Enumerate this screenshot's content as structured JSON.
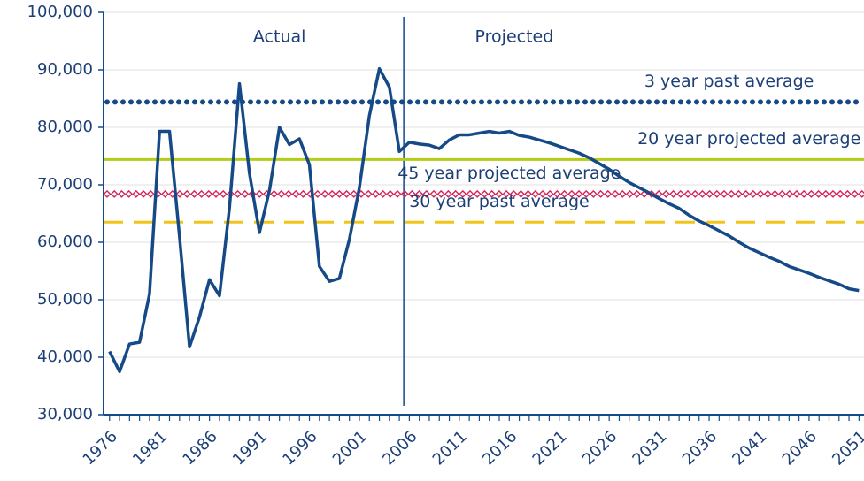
{
  "chart_data": {
    "type": "line",
    "annotations": [
      {
        "text": "Actual",
        "x": 1993
      },
      {
        "text": "Projected",
        "x": 2016.5
      }
    ],
    "divider_x": 2005,
    "x": [
      1976,
      1977,
      1978,
      1979,
      1980,
      1981,
      1982,
      1983,
      1984,
      1985,
      1986,
      1987,
      1988,
      1989,
      1990,
      1991,
      1992,
      1993,
      1994,
      1995,
      1996,
      1997,
      1998,
      1999,
      2000,
      2001,
      2002,
      2003,
      2004,
      2005,
      2006,
      2007,
      2008,
      2009,
      2010,
      2011,
      2012,
      2013,
      2014,
      2015,
      2016,
      2017,
      2018,
      2019,
      2020,
      2021,
      2022,
      2023,
      2024,
      2025,
      2026,
      2027,
      2028,
      2029,
      2030,
      2031,
      2032,
      2033,
      2034,
      2035,
      2036,
      2037,
      2038,
      2039,
      2040,
      2041,
      2042,
      2043,
      2044,
      2045,
      2046,
      2047,
      2048,
      2049,
      2050,
      2051
    ],
    "series": [
      {
        "color": "#154a87",
        "values": [
          41000,
          37500,
          42300,
          42600,
          51000,
          79300,
          79300,
          61000,
          41800,
          47000,
          53500,
          50700,
          66000,
          87600,
          72000,
          61700,
          69000,
          80000,
          77000,
          78000,
          73500,
          55800,
          53200,
          53700,
          60500,
          69500,
          82000,
          90200,
          87000,
          75800,
          77400,
          77100,
          76900,
          76300,
          77800,
          78700,
          78700,
          79000,
          79300,
          79000,
          79300,
          78600,
          78300,
          77800,
          77300,
          76700,
          76100,
          75500,
          74700,
          73700,
          72700,
          71500,
          70400,
          69500,
          68600,
          67600,
          66700,
          65900,
          64700,
          63700,
          62900,
          62000,
          61100,
          60000,
          59000,
          58200,
          57400,
          56700,
          55800,
          55200,
          54600,
          53900,
          53300,
          52700,
          51900,
          51600
        ]
      }
    ],
    "reference_lines": [
      {
        "name": "3 year past average",
        "value": 84400,
        "color": "#154a87",
        "style": "dotted",
        "label_x": 2038
      },
      {
        "name": "20 year projected average",
        "value": 74400,
        "color": "#b5cc18",
        "style": "solid",
        "label_x": 2040
      },
      {
        "name": "45 year projected average",
        "value": 68400,
        "color": "#d6245a",
        "style": "diamond",
        "label_x": 2016
      },
      {
        "name": "30 year past average",
        "value": 63500,
        "color": "#f0c419",
        "style": "dashed",
        "label_x": 2015
      }
    ],
    "xlim": [
      1975.4,
      2051.5
    ],
    "xticks": [
      1976,
      1981,
      1986,
      1991,
      1996,
      2001,
      2006,
      2011,
      2016,
      2021,
      2026,
      2031,
      2036,
      2041,
      2046,
      2051
    ],
    "ylim": [
      30000,
      100000
    ],
    "yticks": [
      {
        "value": 30000,
        "label": "30,000"
      },
      {
        "value": 40000,
        "label": "40,000"
      },
      {
        "value": 50000,
        "label": "50,000"
      },
      {
        "value": 60000,
        "label": "60,000"
      },
      {
        "value": 70000,
        "label": "70,000"
      },
      {
        "value": 80000,
        "label": "80,000"
      },
      {
        "value": 90000,
        "label": "90,000"
      },
      {
        "value": 100000,
        "label": "100,000"
      }
    ],
    "grid": true
  }
}
